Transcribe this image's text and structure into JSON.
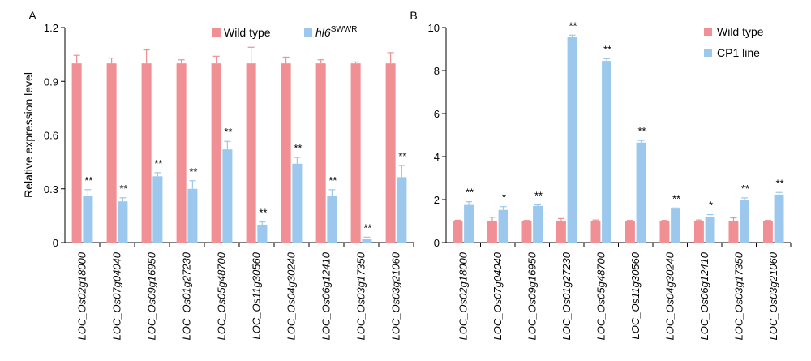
{
  "colors": {
    "wild_type": "#F08F94",
    "mutant": "#9BC8EC",
    "axis": "#000000"
  },
  "chart_data": [
    {
      "type": "bar",
      "panel": "A",
      "ylabel": "Relative expression level",
      "xlabel": "",
      "ylim": [
        0,
        1.2
      ],
      "yticks": [
        "0",
        "0.3",
        "0.6",
        "0.9",
        "1.2"
      ],
      "legend_position": "top-right",
      "categories": [
        "LOC_Os02g18000",
        "LOC_Os07g04040",
        "LOC_Os09g16950",
        "LOC_Os01g27230",
        "LOC_Os05g48700",
        "LOC_Os11g30560",
        "LOC_Os04g30240",
        "LOC_Os06g12410",
        "LOC_Os03g17350",
        "LOC_Os03g21060"
      ],
      "series": [
        {
          "name": "Wild type",
          "values": [
            1.0,
            1.0,
            1.0,
            1.0,
            1.0,
            1.0,
            1.0,
            1.0,
            1.0,
            1.0
          ],
          "errors": [
            0.045,
            0.03,
            0.075,
            0.02,
            0.04,
            0.09,
            0.035,
            0.02,
            0.008,
            0.06
          ]
        },
        {
          "name_main": "hl6",
          "name_sup": "SWWR",
          "values": [
            0.26,
            0.23,
            0.37,
            0.3,
            0.52,
            0.1,
            0.44,
            0.26,
            0.02,
            0.365
          ],
          "errors": [
            0.035,
            0.02,
            0.02,
            0.045,
            0.045,
            0.015,
            0.035,
            0.035,
            0.01,
            0.065
          ],
          "significance": [
            "**",
            "**",
            "**",
            "**",
            "**",
            "**",
            "**",
            "**",
            "**",
            "**"
          ]
        }
      ]
    },
    {
      "type": "bar",
      "panel": "B",
      "ylabel": "",
      "xlabel": "",
      "ylim": [
        0,
        10
      ],
      "yticks": [
        "0",
        "2",
        "4",
        "6",
        "8",
        "10"
      ],
      "legend_position": "top-right",
      "categories": [
        "LOC_Os02g18000",
        "LOC_Os07g04040",
        "LOC_Os09g16950",
        "LOC_Os01g27230",
        "LOC_Os05g48700",
        "LOC_Os11g30560",
        "LOC_Os04g30240",
        "LOC_Os06g12410",
        "LOC_Os03g17350",
        "LOC_Os03g21060"
      ],
      "series": [
        {
          "name": "Wild type",
          "values": [
            1.0,
            1.0,
            1.0,
            1.0,
            1.0,
            1.0,
            1.0,
            1.0,
            1.0,
            1.0
          ],
          "errors": [
            0.04,
            0.18,
            0.03,
            0.12,
            0.05,
            0.03,
            0.03,
            0.05,
            0.15,
            0.03
          ]
        },
        {
          "name": "CP1 line",
          "values": [
            1.75,
            1.52,
            1.7,
            9.55,
            8.45,
            4.65,
            1.58,
            1.2,
            1.98,
            2.23
          ],
          "errors": [
            0.15,
            0.15,
            0.05,
            0.1,
            0.1,
            0.1,
            0.03,
            0.1,
            0.1,
            0.1
          ],
          "significance": [
            "**",
            "*",
            "**",
            "**",
            "**",
            "**",
            "**",
            "*",
            "**",
            "**"
          ]
        }
      ]
    }
  ]
}
